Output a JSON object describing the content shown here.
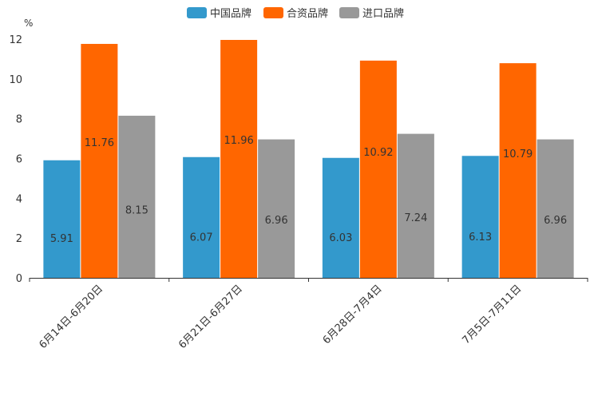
{
  "chart_data": {
    "type": "bar",
    "title": "",
    "unit": "%",
    "xlabel": "",
    "ylabel": "%",
    "ylim": [
      0,
      12
    ],
    "yticks": [
      0,
      2,
      4,
      6,
      8,
      10,
      12
    ],
    "legend_position": "top-center",
    "categories": [
      "6月14日-6月20日",
      "6月21日-6月27日",
      "6月28日-7月4日",
      "7月5日-7月11日"
    ],
    "series": [
      {
        "name": "中国品牌",
        "color": "#3399cc",
        "values": [
          5.91,
          6.07,
          6.03,
          6.13
        ]
      },
      {
        "name": "合资品牌",
        "color": "#ff6600",
        "values": [
          11.76,
          11.96,
          10.92,
          10.79
        ]
      },
      {
        "name": "进口品牌",
        "color": "#999999",
        "values": [
          8.15,
          6.96,
          7.24,
          6.96
        ]
      }
    ]
  }
}
